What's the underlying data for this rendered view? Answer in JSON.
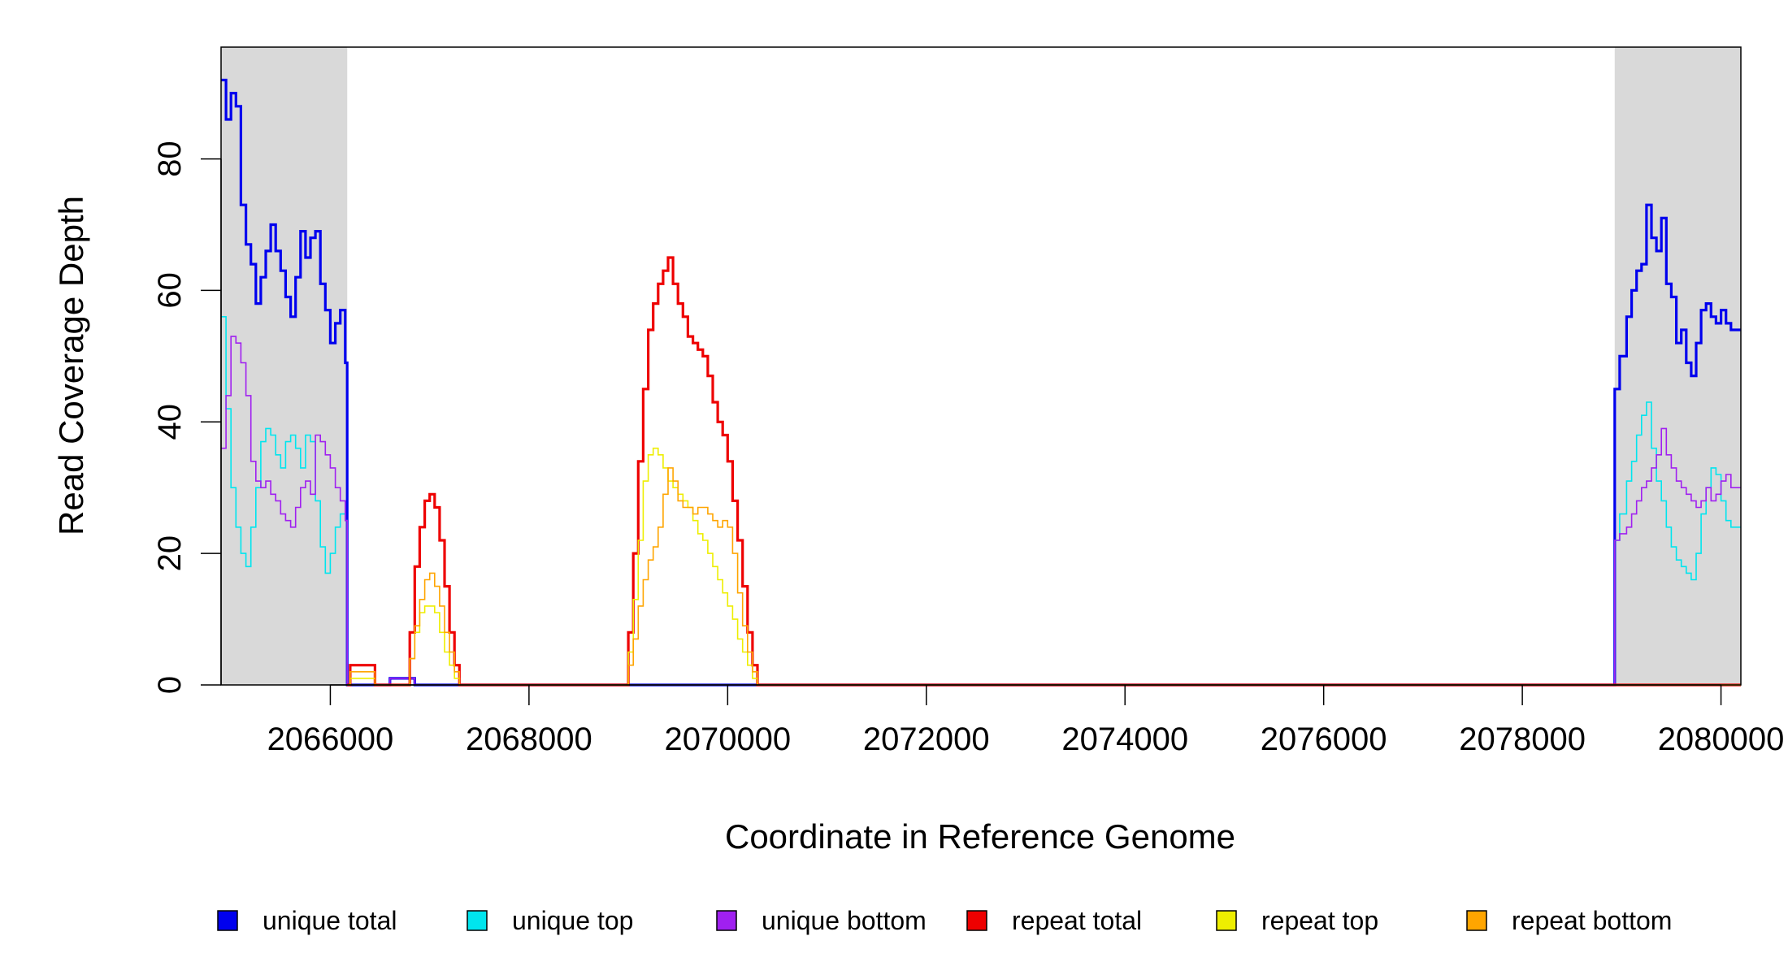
{
  "chart_data": {
    "type": "line",
    "title": "",
    "xlabel": "Coordinate in Reference Genome",
    "ylabel": "Read Coverage Depth",
    "xlim": [
      2064900,
      2080200
    ],
    "ylim": [
      0,
      97
    ],
    "x_ticks": [
      2066000,
      2068000,
      2070000,
      2072000,
      2074000,
      2076000,
      2078000,
      2080000
    ],
    "x_tick_labels": [
      "2066000",
      "2068000",
      "2070000",
      "2072000",
      "2074000",
      "2076000",
      "2078000",
      "2080000"
    ],
    "y_ticks": [
      0,
      20,
      40,
      60,
      80
    ],
    "y_tick_labels": [
      "0",
      "20",
      "40",
      "60",
      "80"
    ],
    "shaded_regions": [
      [
        2064900,
        2066170
      ],
      [
        2078930,
        2080200
      ]
    ],
    "grid": false,
    "legend_position": "bottom",
    "series": [
      {
        "name": "unique total",
        "color": "#0000ee",
        "points": [
          [
            2064900,
            92
          ],
          [
            2064950,
            86
          ],
          [
            2065000,
            90
          ],
          [
            2065050,
            88
          ],
          [
            2065100,
            73
          ],
          [
            2065150,
            67
          ],
          [
            2065200,
            64
          ],
          [
            2065250,
            58
          ],
          [
            2065300,
            62
          ],
          [
            2065350,
            66
          ],
          [
            2065400,
            70
          ],
          [
            2065450,
            66
          ],
          [
            2065500,
            63
          ],
          [
            2065550,
            59
          ],
          [
            2065600,
            56
          ],
          [
            2065650,
            62
          ],
          [
            2065700,
            69
          ],
          [
            2065750,
            65
          ],
          [
            2065800,
            68
          ],
          [
            2065850,
            69
          ],
          [
            2065900,
            61
          ],
          [
            2065950,
            57
          ],
          [
            2066000,
            52
          ],
          [
            2066050,
            55
          ],
          [
            2066100,
            57
          ],
          [
            2066150,
            49
          ],
          [
            2066170,
            0
          ],
          [
            2066600,
            0
          ],
          [
            2066600,
            1
          ],
          [
            2066850,
            1
          ],
          [
            2066850,
            0
          ],
          [
            2078930,
            0
          ],
          [
            2078930,
            45
          ],
          [
            2078980,
            50
          ],
          [
            2079050,
            56
          ],
          [
            2079100,
            60
          ],
          [
            2079150,
            63
          ],
          [
            2079200,
            64
          ],
          [
            2079250,
            73
          ],
          [
            2079300,
            68
          ],
          [
            2079350,
            66
          ],
          [
            2079400,
            71
          ],
          [
            2079450,
            61
          ],
          [
            2079500,
            59
          ],
          [
            2079550,
            52
          ],
          [
            2079600,
            54
          ],
          [
            2079650,
            49
          ],
          [
            2079700,
            47
          ],
          [
            2079750,
            52
          ],
          [
            2079800,
            57
          ],
          [
            2079850,
            58
          ],
          [
            2079900,
            56
          ],
          [
            2079950,
            55
          ],
          [
            2080000,
            57
          ],
          [
            2080050,
            55
          ],
          [
            2080100,
            54
          ],
          [
            2080200,
            54
          ]
        ]
      },
      {
        "name": "unique top",
        "color": "#00e5ee",
        "points": [
          [
            2064900,
            56
          ],
          [
            2064950,
            42
          ],
          [
            2065000,
            30
          ],
          [
            2065050,
            24
          ],
          [
            2065100,
            20
          ],
          [
            2065150,
            18
          ],
          [
            2065200,
            24
          ],
          [
            2065250,
            30
          ],
          [
            2065300,
            37
          ],
          [
            2065350,
            39
          ],
          [
            2065400,
            38
          ],
          [
            2065450,
            35
          ],
          [
            2065500,
            33
          ],
          [
            2065550,
            37
          ],
          [
            2065600,
            38
          ],
          [
            2065650,
            36
          ],
          [
            2065700,
            33
          ],
          [
            2065750,
            38
          ],
          [
            2065800,
            37
          ],
          [
            2065850,
            28
          ],
          [
            2065900,
            21
          ],
          [
            2065950,
            17
          ],
          [
            2066000,
            20
          ],
          [
            2066050,
            24
          ],
          [
            2066100,
            26
          ],
          [
            2066150,
            25
          ],
          [
            2066170,
            0
          ],
          [
            2078930,
            0
          ],
          [
            2078930,
            22
          ],
          [
            2078980,
            26
          ],
          [
            2079050,
            31
          ],
          [
            2079100,
            34
          ],
          [
            2079150,
            38
          ],
          [
            2079200,
            41
          ],
          [
            2079250,
            43
          ],
          [
            2079300,
            36
          ],
          [
            2079350,
            31
          ],
          [
            2079400,
            28
          ],
          [
            2079450,
            24
          ],
          [
            2079500,
            21
          ],
          [
            2079550,
            19
          ],
          [
            2079600,
            18
          ],
          [
            2079650,
            17
          ],
          [
            2079700,
            16
          ],
          [
            2079750,
            20
          ],
          [
            2079800,
            26
          ],
          [
            2079850,
            30
          ],
          [
            2079900,
            33
          ],
          [
            2079950,
            32
          ],
          [
            2080000,
            28
          ],
          [
            2080050,
            25
          ],
          [
            2080100,
            24
          ],
          [
            2080200,
            24
          ]
        ]
      },
      {
        "name": "unique bottom",
        "color": "#a020f0",
        "points": [
          [
            2064900,
            36
          ],
          [
            2064950,
            44
          ],
          [
            2065000,
            53
          ],
          [
            2065050,
            52
          ],
          [
            2065100,
            49
          ],
          [
            2065150,
            44
          ],
          [
            2065200,
            34
          ],
          [
            2065250,
            31
          ],
          [
            2065300,
            30
          ],
          [
            2065350,
            31
          ],
          [
            2065400,
            29
          ],
          [
            2065450,
            28
          ],
          [
            2065500,
            26
          ],
          [
            2065550,
            25
          ],
          [
            2065600,
            24
          ],
          [
            2065650,
            27
          ],
          [
            2065700,
            30
          ],
          [
            2065750,
            31
          ],
          [
            2065800,
            29
          ],
          [
            2065850,
            38
          ],
          [
            2065900,
            37
          ],
          [
            2065950,
            35
          ],
          [
            2066000,
            33
          ],
          [
            2066050,
            30
          ],
          [
            2066100,
            28
          ],
          [
            2066150,
            25
          ],
          [
            2066170,
            0
          ],
          [
            2066600,
            0
          ],
          [
            2066600,
            1
          ],
          [
            2066850,
            1
          ],
          [
            2066850,
            0
          ],
          [
            2078930,
            0
          ],
          [
            2078930,
            22
          ],
          [
            2078980,
            23
          ],
          [
            2079050,
            24
          ],
          [
            2079100,
            26
          ],
          [
            2079150,
            28
          ],
          [
            2079200,
            30
          ],
          [
            2079250,
            31
          ],
          [
            2079300,
            33
          ],
          [
            2079350,
            35
          ],
          [
            2079400,
            39
          ],
          [
            2079450,
            35
          ],
          [
            2079500,
            33
          ],
          [
            2079550,
            31
          ],
          [
            2079600,
            30
          ],
          [
            2079650,
            29
          ],
          [
            2079700,
            28
          ],
          [
            2079750,
            27
          ],
          [
            2079800,
            28
          ],
          [
            2079850,
            30
          ],
          [
            2079900,
            28
          ],
          [
            2079950,
            29
          ],
          [
            2080000,
            31
          ],
          [
            2080050,
            32
          ],
          [
            2080100,
            30
          ],
          [
            2080200,
            30
          ]
        ]
      },
      {
        "name": "repeat total",
        "color": "#ee0000",
        "points": [
          [
            2066170,
            0
          ],
          [
            2066200,
            3
          ],
          [
            2066450,
            3
          ],
          [
            2066450,
            0
          ],
          [
            2066750,
            0
          ],
          [
            2066800,
            8
          ],
          [
            2066850,
            18
          ],
          [
            2066900,
            24
          ],
          [
            2066950,
            28
          ],
          [
            2067000,
            29
          ],
          [
            2067050,
            27
          ],
          [
            2067100,
            22
          ],
          [
            2067150,
            15
          ],
          [
            2067200,
            8
          ],
          [
            2067250,
            3
          ],
          [
            2067300,
            0
          ],
          [
            2068950,
            0
          ],
          [
            2069000,
            8
          ],
          [
            2069050,
            20
          ],
          [
            2069100,
            34
          ],
          [
            2069150,
            45
          ],
          [
            2069200,
            54
          ],
          [
            2069250,
            58
          ],
          [
            2069300,
            61
          ],
          [
            2069350,
            63
          ],
          [
            2069400,
            65
          ],
          [
            2069450,
            61
          ],
          [
            2069500,
            58
          ],
          [
            2069550,
            56
          ],
          [
            2069600,
            53
          ],
          [
            2069650,
            52
          ],
          [
            2069700,
            51
          ],
          [
            2069750,
            50
          ],
          [
            2069800,
            47
          ],
          [
            2069850,
            43
          ],
          [
            2069900,
            40
          ],
          [
            2069950,
            38
          ],
          [
            2070000,
            34
          ],
          [
            2070050,
            28
          ],
          [
            2070100,
            22
          ],
          [
            2070150,
            15
          ],
          [
            2070200,
            8
          ],
          [
            2070250,
            3
          ],
          [
            2070300,
            0
          ],
          [
            2080200,
            0
          ]
        ]
      },
      {
        "name": "repeat top",
        "color": "#eeee00",
        "points": [
          [
            2066170,
            0
          ],
          [
            2066200,
            1
          ],
          [
            2066450,
            1
          ],
          [
            2066450,
            0
          ],
          [
            2066750,
            0
          ],
          [
            2066800,
            4
          ],
          [
            2066850,
            8
          ],
          [
            2066900,
            11
          ],
          [
            2066950,
            12
          ],
          [
            2067000,
            12
          ],
          [
            2067050,
            11
          ],
          [
            2067100,
            8
          ],
          [
            2067150,
            5
          ],
          [
            2067200,
            3
          ],
          [
            2067250,
            1
          ],
          [
            2067300,
            0
          ],
          [
            2068950,
            0
          ],
          [
            2069000,
            5
          ],
          [
            2069050,
            13
          ],
          [
            2069100,
            22
          ],
          [
            2069150,
            31
          ],
          [
            2069200,
            35
          ],
          [
            2069250,
            36
          ],
          [
            2069300,
            35
          ],
          [
            2069350,
            33
          ],
          [
            2069400,
            31
          ],
          [
            2069450,
            30
          ],
          [
            2069500,
            29
          ],
          [
            2069550,
            28
          ],
          [
            2069600,
            27
          ],
          [
            2069650,
            25
          ],
          [
            2069700,
            23
          ],
          [
            2069750,
            22
          ],
          [
            2069800,
            20
          ],
          [
            2069850,
            18
          ],
          [
            2069900,
            16
          ],
          [
            2069950,
            14
          ],
          [
            2070000,
            12
          ],
          [
            2070050,
            10
          ],
          [
            2070100,
            7
          ],
          [
            2070150,
            5
          ],
          [
            2070200,
            3
          ],
          [
            2070250,
            1
          ],
          [
            2070300,
            0
          ],
          [
            2080200,
            0
          ]
        ]
      },
      {
        "name": "repeat bottom",
        "color": "#ffa500",
        "points": [
          [
            2066170,
            0
          ],
          [
            2066200,
            2
          ],
          [
            2066450,
            2
          ],
          [
            2066450,
            0
          ],
          [
            2066750,
            0
          ],
          [
            2066800,
            4
          ],
          [
            2066850,
            9
          ],
          [
            2066900,
            13
          ],
          [
            2066950,
            16
          ],
          [
            2067000,
            17
          ],
          [
            2067050,
            15
          ],
          [
            2067100,
            12
          ],
          [
            2067150,
            8
          ],
          [
            2067200,
            5
          ],
          [
            2067250,
            2
          ],
          [
            2067300,
            0
          ],
          [
            2068950,
            0
          ],
          [
            2069000,
            3
          ],
          [
            2069050,
            7
          ],
          [
            2069100,
            12
          ],
          [
            2069150,
            16
          ],
          [
            2069200,
            19
          ],
          [
            2069250,
            21
          ],
          [
            2069300,
            24
          ],
          [
            2069350,
            29
          ],
          [
            2069400,
            33
          ],
          [
            2069450,
            31
          ],
          [
            2069500,
            28
          ],
          [
            2069550,
            27
          ],
          [
            2069600,
            27
          ],
          [
            2069650,
            26
          ],
          [
            2069700,
            27
          ],
          [
            2069750,
            27
          ],
          [
            2069800,
            26
          ],
          [
            2069850,
            25
          ],
          [
            2069900,
            24
          ],
          [
            2069950,
            25
          ],
          [
            2070000,
            24
          ],
          [
            2070050,
            20
          ],
          [
            2070100,
            14
          ],
          [
            2070150,
            9
          ],
          [
            2070200,
            5
          ],
          [
            2070250,
            2
          ],
          [
            2070300,
            0
          ],
          [
            2080200,
            0
          ]
        ]
      }
    ]
  }
}
